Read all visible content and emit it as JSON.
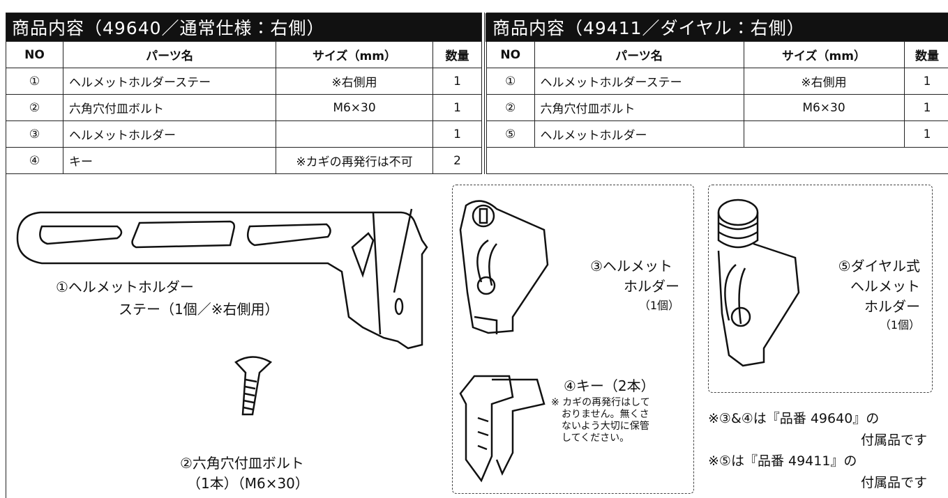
{
  "left_table": {
    "title": "商品内容（49640／通常仕様：右側）",
    "columns": [
      "NO",
      "パーツ名",
      "サイズ（mm）",
      "数量"
    ],
    "rows": [
      {
        "no": "①",
        "name": "ヘルメットホルダーステー",
        "size": "※右側用",
        "qty": 1
      },
      {
        "no": "②",
        "name": "六角穴付皿ボルト",
        "size": "M6×30",
        "qty": 1
      },
      {
        "no": "③",
        "name": "ヘルメットホルダー",
        "qty": 1
      },
      {
        "no": "④",
        "name": "キー",
        "size": "※カギの再発行は不可",
        "qty": 2
      }
    ]
  },
  "right_table": {
    "title": "商品内容（49411／ダイヤル：右側）",
    "columns": [
      "NO",
      "パーツ名",
      "サイズ（mm）",
      "数量"
    ],
    "rows": [
      {
        "no": "①",
        "name": "ヘルメットホルダーステー",
        "size": "※右側用",
        "qty": 1
      },
      {
        "no": "②",
        "name": "六角穴付皿ボルト",
        "size": "M6×30",
        "qty": 1
      },
      {
        "no": "⑤",
        "name": "ヘルメットホルダー",
        "qty": 1
      }
    ]
  },
  "figures": {
    "stay": [
      "①ヘルメットホルダー",
      "ステー（1個／※右側用）"
    ],
    "bolt": [
      "②六角穴付皿ボルト",
      "（1本）（M6×30）"
    ],
    "holder": [
      "③ヘルメット",
      "ホルダー",
      "（1個）"
    ],
    "key": {
      "caption": "④キー（2本）",
      "note": [
        "※ カギの再発行はして",
        "おりません。無くさ",
        "ないよう大切に保管",
        "してください。"
      ]
    },
    "dial": [
      "⑤ダイヤル式",
      "ヘルメット",
      "ホルダー",
      "（1個）"
    ],
    "notes": [
      "※③&④は『品番 49640』の",
      "付属品です",
      "※⑤は『品番 49411』の",
      "付属品です"
    ]
  }
}
